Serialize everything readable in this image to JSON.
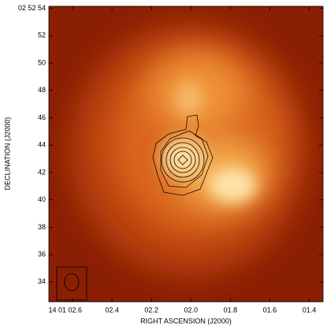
{
  "chart_data": {
    "type": "image",
    "xlabel": "RIGHT ASCENSION (J2000)",
    "ylabel": "DECLINATION (J2000)",
    "xlim": [
      2.72,
      1.33
    ],
    "ylim": [
      32.55,
      54.15
    ],
    "xticks": [
      {
        "value": 2.6,
        "label": "14 01 02.6"
      },
      {
        "value": 2.4,
        "label": "02.4"
      },
      {
        "value": 2.2,
        "label": "02.2"
      },
      {
        "value": 2.0,
        "label": "02.0"
      },
      {
        "value": 1.8,
        "label": "01.8"
      },
      {
        "value": 1.6,
        "label": "01.6"
      },
      {
        "value": 1.4,
        "label": "01.4"
      }
    ],
    "yticks": [
      {
        "value": 54,
        "label": "02 52 54"
      },
      52,
      50,
      48,
      46,
      44,
      42,
      40,
      38,
      36,
      34
    ]
  }
}
